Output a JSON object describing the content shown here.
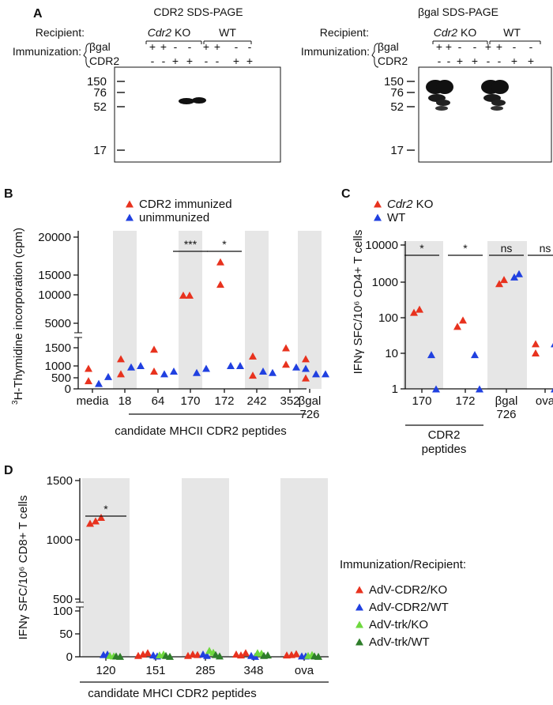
{
  "panel_a": {
    "letter": "A",
    "gels": [
      {
        "title": "CDR2 SDS-PAGE",
        "recipient_label": "Recipient:",
        "immunization_label": "Immunization:",
        "groups": [
          {
            "name": "Cdr2",
            "suffix": " KO",
            "italic": true
          },
          {
            "name": "WT",
            "suffix": "",
            "italic": false
          }
        ],
        "row1_label": "βgal",
        "row1_signs": [
          "+",
          "+",
          "-",
          "-",
          "+",
          "+",
          "-",
          "-"
        ],
        "row2_label": "CDR2",
        "row2_signs": [
          "-",
          "-",
          "+",
          "+",
          "-",
          "-",
          "+",
          "+"
        ],
        "markers": [
          "150",
          "76",
          "52",
          "17"
        ]
      },
      {
        "title": "βgal SDS-PAGE",
        "recipient_label": "Recipient:",
        "immunization_label": "Immunization:",
        "groups": [
          {
            "name": "Cdr2",
            "suffix": " KO",
            "italic": true
          },
          {
            "name": "WT",
            "suffix": "",
            "italic": false
          }
        ],
        "row1_label": "βgal",
        "row1_signs": [
          "+",
          "+",
          "-",
          "-",
          "+",
          "+",
          "-",
          "-"
        ],
        "row2_label": "CDR2",
        "row2_signs": [
          "-",
          "-",
          "+",
          "+",
          "-",
          "-",
          "+",
          "+"
        ],
        "markers": [
          "150",
          "76",
          "52",
          "17"
        ]
      }
    ]
  },
  "chart_data": [
    {
      "panel": "B",
      "type": "scatter",
      "ylabel_super": "3",
      "ylabel_rest": "H-Thymidine incorporation (cpm)",
      "yticks": [
        "20000",
        "15000",
        "10000",
        "5000",
        "1500",
        "1000",
        "500",
        "0"
      ],
      "categories": [
        "media",
        "18",
        "64",
        "170",
        "172",
        "242",
        "352",
        "βgal\n726"
      ],
      "xgroup_label": "candidate MHCII CDR2 peptides",
      "series": [
        {
          "name": "CDR2 immunized",
          "color": "#e8321e",
          "values": [
            [
              750,
              300
            ],
            [
              1100,
              550
            ],
            [
              1450,
              650
            ],
            [
              9900,
              9900
            ],
            [
              15700,
              11800
            ],
            [
              1200,
              500
            ],
            [
              1500,
              900
            ],
            [
              1100,
              400
            ]
          ]
        },
        {
          "name": "unimmunized",
          "color": "#2040e0",
          "values": [
            [
              200,
              450
            ],
            [
              800,
              850
            ],
            [
              550,
              650
            ],
            [
              600,
              750
            ],
            [
              850,
              850
            ],
            [
              650,
              600
            ],
            [
              800,
              750
            ],
            [
              550,
              550
            ]
          ]
        }
      ],
      "significance": [
        {
          "category": "170",
          "label": "***"
        },
        {
          "category": "172",
          "label": "*"
        }
      ]
    },
    {
      "panel": "C",
      "type": "scatter",
      "ylabel": "IFNγ SFC/10⁶ CD4+ T cells",
      "yticks": [
        "10000",
        "1000",
        "100",
        "10",
        "1"
      ],
      "categories": [
        "170",
        "172",
        "βgal\n726",
        "ova"
      ],
      "xgroup_label": "CDR2\npeptides",
      "series": [
        {
          "name": "Cdr2 KO",
          "color": "#e8321e",
          "values": [
            [
              135,
              165
            ],
            [
              55,
              82
            ],
            [
              850,
              1100
            ],
            [
              18,
              10
            ]
          ]
        },
        {
          "name": "WT",
          "color": "#2040e0",
          "values": [
            [
              9,
              1
            ],
            [
              9,
              1
            ],
            [
              1300,
              1600
            ],
            [
              18,
              1
            ]
          ]
        }
      ],
      "significance": [
        {
          "category": "170",
          "label": "*"
        },
        {
          "category": "172",
          "label": "*"
        },
        {
          "category": "βgal\n726",
          "label": "ns"
        },
        {
          "category": "ova",
          "label": "ns"
        }
      ]
    },
    {
      "panel": "D",
      "type": "scatter",
      "ylabel": "IFNγ SFC/10⁶ CD8+ T cells",
      "yticks": [
        "1500",
        "1000",
        "500",
        "100",
        "50",
        "0"
      ],
      "categories": [
        "120",
        "151",
        "285",
        "348",
        "ova"
      ],
      "xgroup_label": "candidate MHCI CDR2 peptides",
      "legend_title": "Immunization/Recipient:",
      "series": [
        {
          "name": "AdV-CDR2/KO",
          "color": "#e8321e",
          "values": [
            [
              1140,
              1160,
              1190
            ],
            [
              3,
              6,
              9
            ],
            [
              3,
              6,
              5
            ],
            [
              6,
              4,
              9
            ],
            [
              4,
              5,
              7
            ]
          ]
        },
        {
          "name": "AdV-CDR2/WT",
          "color": "#2040e0",
          "values": [
            [
              5,
              6
            ],
            [
              4,
              2
            ],
            [
              6,
              3
            ],
            [
              3,
              1
            ],
            [
              2,
              2
            ]
          ]
        },
        {
          "name": "AdV-trk/KO",
          "color": "#6ed83e",
          "values": [
            [
              3,
              2
            ],
            [
              4,
              6
            ],
            [
              14,
              10
            ],
            [
              9,
              8
            ],
            [
              3,
              5
            ]
          ]
        },
        {
          "name": "AdV-trk/WT",
          "color": "#2e7d2a",
          "values": [
            [
              2,
              1
            ],
            [
              3,
              1
            ],
            [
              5,
              2
            ],
            [
              3,
              4
            ],
            [
              2,
              1
            ]
          ]
        }
      ],
      "significance": [
        {
          "category": "120",
          "label": "*"
        }
      ]
    }
  ]
}
